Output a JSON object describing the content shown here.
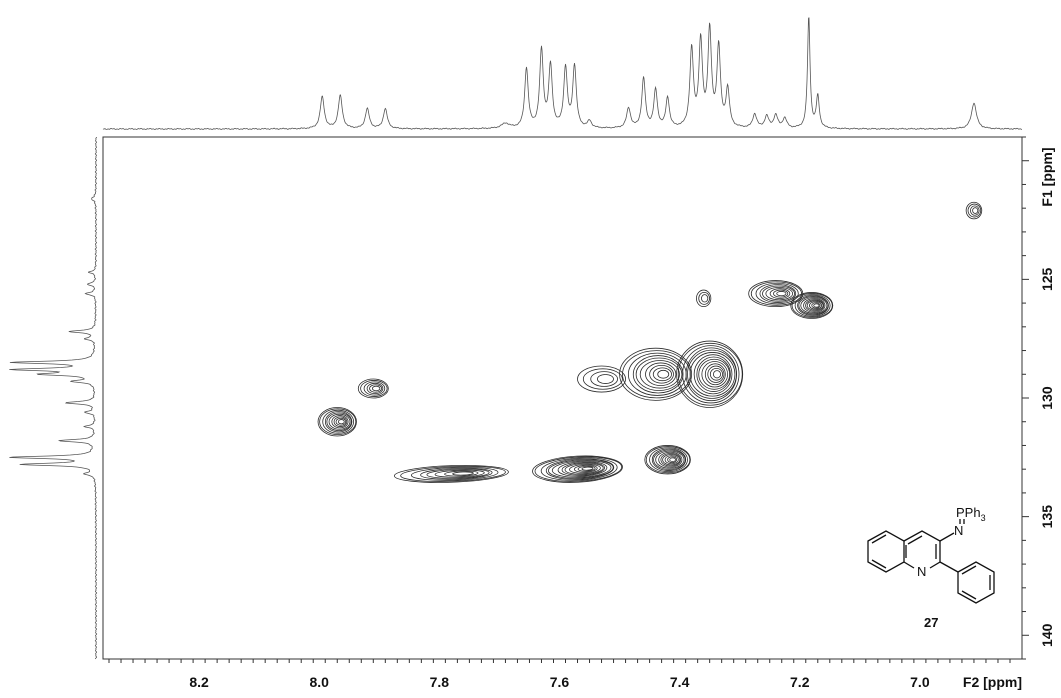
{
  "chart_data": {
    "type": "heatmap",
    "subtype": "2D NMR contour plot (HSQC) with 1D projections",
    "xlabel": "F2 [ppm]",
    "ylabel": "F1 [ppm]",
    "xlim": [
      8.36,
      6.83
    ],
    "ylim": [
      119.0,
      141.0
    ],
    "x_ticks": [
      "8.2",
      "8.0",
      "7.8",
      "7.6",
      "7.4",
      "7.2",
      "7.0"
    ],
    "y_ticks": [
      "125",
      "130",
      "135",
      "140"
    ],
    "grid": false,
    "peaks": [
      {
        "name": "cross-peak-6.91-122.1",
        "x": 6.91,
        "y": 122.1,
        "rx": 0.013,
        "ry": 0.35,
        "levels": 4,
        "angle": 0
      },
      {
        "name": "cross-peak-7.36-125.8",
        "x": 7.36,
        "y": 125.8,
        "rx": 0.012,
        "ry": 0.35,
        "levels": 3,
        "angle": 0
      },
      {
        "name": "cross-peak-7.18-126.1",
        "x": 7.18,
        "y": 126.1,
        "rx": 0.035,
        "ry": 0.55,
        "levels": 12,
        "angle": 0
      },
      {
        "name": "cross-peak-7.24-125.6",
        "x": 7.24,
        "y": 125.6,
        "rx": 0.045,
        "ry": 0.55,
        "levels": 9,
        "angle": 0
      },
      {
        "name": "cross-peak-7.35-129.0",
        "x": 7.35,
        "y": 129.0,
        "rx": 0.055,
        "ry": 1.4,
        "levels": 14,
        "angle": 0
      },
      {
        "name": "cross-peak-7.44-129.0",
        "x": 7.44,
        "y": 129.0,
        "rx": 0.06,
        "ry": 1.1,
        "levels": 10,
        "angle": 0
      },
      {
        "name": "cross-peak-7.53-129.2",
        "x": 7.53,
        "y": 129.2,
        "rx": 0.04,
        "ry": 0.55,
        "levels": 4,
        "angle": 0
      },
      {
        "name": "cross-peak-7.91-129.6",
        "x": 7.91,
        "y": 129.6,
        "rx": 0.025,
        "ry": 0.4,
        "levels": 6,
        "angle": 0
      },
      {
        "name": "cross-peak-7.97-131.0",
        "x": 7.97,
        "y": 131.0,
        "rx": 0.032,
        "ry": 0.6,
        "levels": 10,
        "angle": 0
      },
      {
        "name": "cross-peak-7.42-132.6",
        "x": 7.42,
        "y": 132.6,
        "rx": 0.038,
        "ry": 0.6,
        "levels": 12,
        "angle": 0
      },
      {
        "name": "cross-peak-7.57-133.0",
        "x": 7.57,
        "y": 133.0,
        "rx": 0.075,
        "ry": 0.55,
        "levels": 13,
        "angle": -3
      },
      {
        "name": "cross-peak-7.78-133.2",
        "x": 7.78,
        "y": 133.2,
        "rx": 0.095,
        "ry": 0.35,
        "levels": 8,
        "angle": -2
      }
    ],
    "f2_projection_peaks": [
      {
        "ppm": 7.995,
        "height": 0.32,
        "width": 0.004
      },
      {
        "ppm": 7.965,
        "height": 0.33,
        "width": 0.004
      },
      {
        "ppm": 7.92,
        "height": 0.2,
        "width": 0.004
      },
      {
        "ppm": 7.89,
        "height": 0.2,
        "width": 0.004
      },
      {
        "ppm": 7.69,
        "height": 0.05,
        "width": 0.008
      },
      {
        "ppm": 7.655,
        "height": 0.6,
        "width": 0.0035
      },
      {
        "ppm": 7.63,
        "height": 0.78,
        "width": 0.0035
      },
      {
        "ppm": 7.615,
        "height": 0.62,
        "width": 0.0035
      },
      {
        "ppm": 7.59,
        "height": 0.6,
        "width": 0.0035
      },
      {
        "ppm": 7.575,
        "height": 0.62,
        "width": 0.0035
      },
      {
        "ppm": 7.55,
        "height": 0.07,
        "width": 0.004
      },
      {
        "ppm": 7.485,
        "height": 0.2,
        "width": 0.004
      },
      {
        "ppm": 7.46,
        "height": 0.5,
        "width": 0.0035
      },
      {
        "ppm": 7.44,
        "height": 0.38,
        "width": 0.0035
      },
      {
        "ppm": 7.42,
        "height": 0.3,
        "width": 0.0035
      },
      {
        "ppm": 7.38,
        "height": 0.78,
        "width": 0.0035
      },
      {
        "ppm": 7.365,
        "height": 0.85,
        "width": 0.0035
      },
      {
        "ppm": 7.35,
        "height": 0.96,
        "width": 0.0035
      },
      {
        "ppm": 7.335,
        "height": 0.8,
        "width": 0.0035
      },
      {
        "ppm": 7.32,
        "height": 0.38,
        "width": 0.0035
      },
      {
        "ppm": 7.275,
        "height": 0.14,
        "width": 0.004
      },
      {
        "ppm": 7.255,
        "height": 0.12,
        "width": 0.004
      },
      {
        "ppm": 7.24,
        "height": 0.13,
        "width": 0.004
      },
      {
        "ppm": 7.225,
        "height": 0.1,
        "width": 0.004
      },
      {
        "ppm": 7.185,
        "height": 1.12,
        "width": 0.0025
      },
      {
        "ppm": 7.17,
        "height": 0.32,
        "width": 0.003
      },
      {
        "ppm": 6.91,
        "height": 0.26,
        "width": 0.005
      }
    ],
    "f1_projection_peaks": [
      {
        "ppm": 121.6,
        "height": 0.05,
        "width": 0.1
      },
      {
        "ppm": 124.7,
        "height": 0.08,
        "width": 0.06
      },
      {
        "ppm": 125.2,
        "height": 0.1,
        "width": 0.06
      },
      {
        "ppm": 125.6,
        "height": 0.12,
        "width": 0.06
      },
      {
        "ppm": 127.2,
        "height": 0.3,
        "width": 0.06
      },
      {
        "ppm": 127.5,
        "height": 0.12,
        "width": 0.06
      },
      {
        "ppm": 128.5,
        "height": 0.95,
        "width": 0.06
      },
      {
        "ppm": 128.8,
        "height": 0.92,
        "width": 0.06
      },
      {
        "ppm": 129.0,
        "height": 0.6,
        "width": 0.06
      },
      {
        "ppm": 129.3,
        "height": 0.25,
        "width": 0.06
      },
      {
        "ppm": 130.2,
        "height": 0.35,
        "width": 0.06
      },
      {
        "ppm": 130.6,
        "height": 0.12,
        "width": 0.06
      },
      {
        "ppm": 131.2,
        "height": 0.12,
        "width": 0.06
      },
      {
        "ppm": 131.8,
        "height": 0.42,
        "width": 0.06
      },
      {
        "ppm": 132.5,
        "height": 0.98,
        "width": 0.06
      },
      {
        "ppm": 132.8,
        "height": 0.85,
        "width": 0.06
      },
      {
        "ppm": 133.2,
        "height": 0.12,
        "width": 0.06
      }
    ],
    "structure": {
      "compound_label": "27",
      "substituent_text": "PPh",
      "substituent_subscript": "3",
      "n_imine_label": "N",
      "n_ring_label": "N"
    },
    "colors": {
      "contour": "#2b2b2b",
      "trace": "#555555",
      "frame": "#333333"
    }
  }
}
